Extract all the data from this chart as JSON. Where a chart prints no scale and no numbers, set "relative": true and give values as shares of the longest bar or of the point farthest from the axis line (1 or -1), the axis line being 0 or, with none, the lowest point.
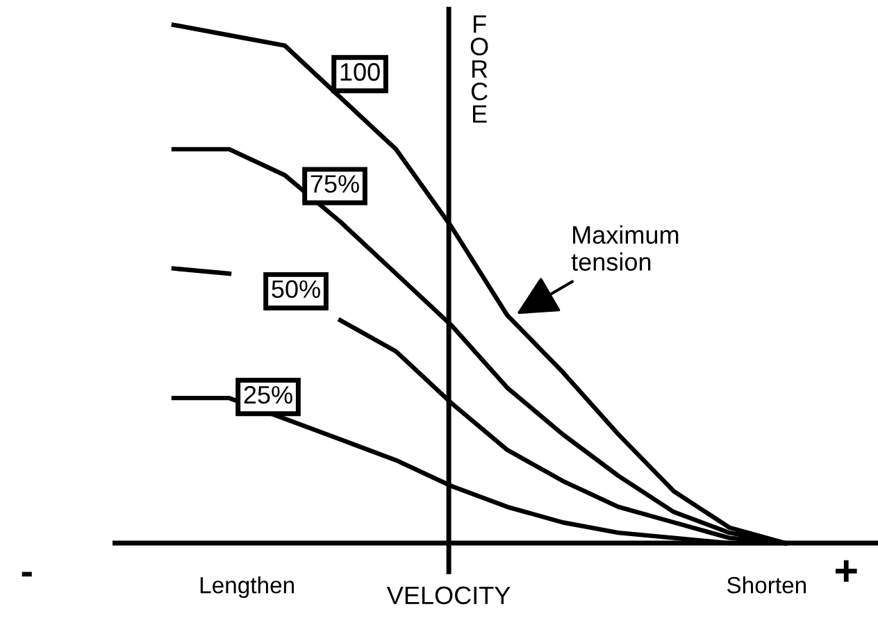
{
  "chart_data": {
    "type": "line",
    "relative": true,
    "xlabel": "VELOCITY",
    "ylabel": "FORCE",
    "annotations": [
      "-",
      "Lengthen",
      "Shorten",
      "+",
      "Maximum\ntension"
    ],
    "categories": [
      null,
      null,
      null,
      null,
      null,
      null,
      null,
      null,
      null,
      null,
      null,
      null
    ],
    "series": [
      {
        "name": "100",
        "color": "#000000",
        "values": [
          1,
          0.98,
          0.96,
          0.86,
          0.76,
          0.61,
          0.44,
          0.33,
          0.21,
          0.1,
          0.03,
          0
        ]
      },
      {
        "name": "75%",
        "color": "#000000",
        "values": [
          0.76,
          0.76,
          0.71,
          0.62,
          0.52,
          0.42,
          0.3,
          0.21,
          0.13,
          0.06,
          0.02,
          0
        ]
      },
      {
        "name": "50%",
        "color": "#000000",
        "values": [
          0.53,
          0.52,
          null,
          0.43,
          0.37,
          0.27,
          0.18,
          0.12,
          0.07,
          0.04,
          0.01,
          0
        ]
      },
      {
        "name": "25%",
        "color": "#000000",
        "values": [
          0.28,
          0.28,
          0.24,
          0.2,
          0.16,
          0.11,
          0.07,
          0.04,
          0.02,
          0.01,
          0,
          0
        ]
      }
    ],
    "marker": "none",
    "line_style": "solid"
  }
}
